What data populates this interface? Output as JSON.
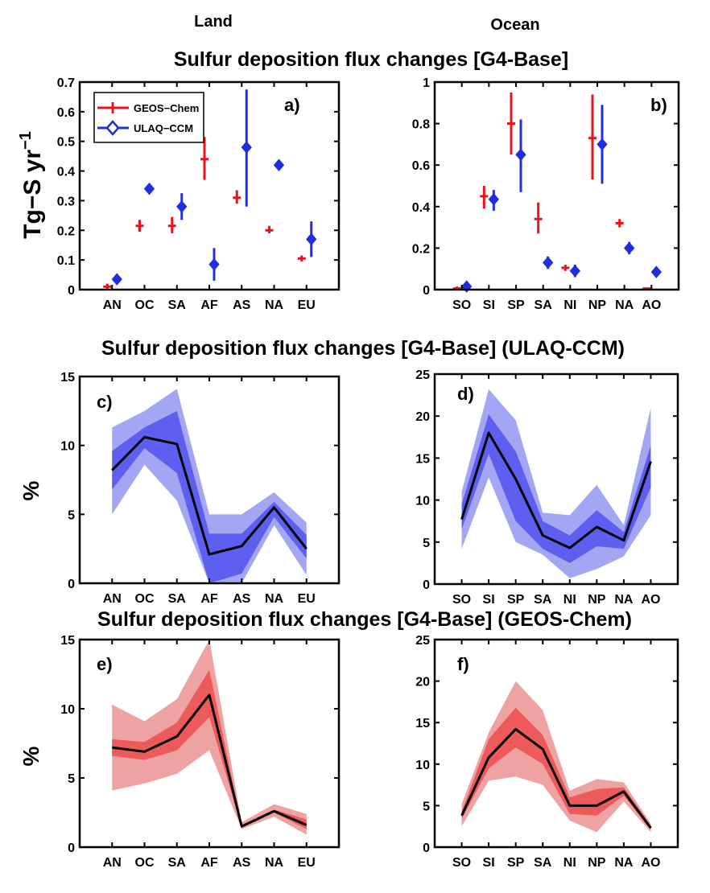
{
  "column_titles": {
    "land": "Land",
    "ocean": "Ocean"
  },
  "row_titles": [
    "Sulfur deposition flux changes [G4-Base]",
    "Sulfur deposition flux changes [G4-Base] (ULAQ-CCM)",
    "Sulfur deposition flux changes [G4-Base] (GEOS-Chem)"
  ],
  "colors": {
    "geos": "#e8141c",
    "ulaq": "#1f2fe0",
    "ulaq_band_inner": "#5c5ff0",
    "ulaq_band_outer": "#a3a6f2",
    "geos_band_inner": "#ec5a5a",
    "geos_band_outer": "#eea2a2",
    "line": "#000000"
  },
  "legend": {
    "geos": "GEOS−Chem",
    "ulaq": "ULAQ−CCM"
  },
  "ylabel_flux": "Tg−S yr",
  "ylabel_flux_sup": "−1",
  "ylabel_pct": "%",
  "chart_data": [
    {
      "id": "a",
      "panel_label": "a)",
      "type": "errorbar",
      "categories": [
        "AN",
        "OC",
        "SA",
        "AF",
        "AS",
        "NA",
        "EU"
      ],
      "ylim": [
        0,
        0.7
      ],
      "yticks": [
        "0",
        "0.1",
        "0.2",
        "0.3",
        "0.4",
        "0.5",
        "0.6",
        "0.7"
      ],
      "series": [
        {
          "name": "GEOS−Chem",
          "values": [
            0.01,
            0.215,
            0.215,
            0.44,
            0.31,
            0.2,
            0.105
          ],
          "low": [
            0.0,
            0.195,
            0.19,
            0.37,
            0.29,
            0.19,
            0.095
          ],
          "high": [
            0.02,
            0.235,
            0.245,
            0.515,
            0.335,
            0.215,
            0.115
          ]
        },
        {
          "name": "ULAQ−CCM",
          "values": [
            0.035,
            0.34,
            0.28,
            0.085,
            0.48,
            0.42,
            0.17
          ],
          "low": [
            0.025,
            0.325,
            0.235,
            0.03,
            0.28,
            0.41,
            0.11
          ],
          "high": [
            0.045,
            0.355,
            0.325,
            0.14,
            0.675,
            0.43,
            0.23
          ]
        }
      ]
    },
    {
      "id": "b",
      "panel_label": "b)",
      "type": "errorbar",
      "categories": [
        "SO",
        "SI",
        "SP",
        "SA",
        "NI",
        "NP",
        "NA",
        "AO"
      ],
      "ylim": [
        0,
        1
      ],
      "yticks": [
        "0",
        "0.2",
        "0.4",
        "0.6",
        "0.8",
        "1"
      ],
      "series": [
        {
          "name": "GEOS−Chem",
          "values": [
            0.005,
            0.45,
            0.8,
            0.34,
            0.105,
            0.73,
            0.32,
            0.005
          ],
          "low": [
            0.0,
            0.39,
            0.65,
            0.27,
            0.09,
            0.53,
            0.3,
            0.0
          ],
          "high": [
            0.015,
            0.5,
            0.95,
            0.42,
            0.12,
            0.94,
            0.34,
            0.01
          ]
        },
        {
          "name": "ULAQ−CCM",
          "values": [
            0.015,
            0.435,
            0.65,
            0.13,
            0.09,
            0.7,
            0.2,
            0.085
          ],
          "low": [
            0.005,
            0.38,
            0.47,
            0.1,
            0.06,
            0.51,
            0.17,
            0.075
          ],
          "high": [
            0.025,
            0.48,
            0.82,
            0.16,
            0.12,
            0.89,
            0.23,
            0.095
          ]
        }
      ]
    },
    {
      "id": "c",
      "panel_label": "c)",
      "type": "area",
      "categories": [
        "AN",
        "OC",
        "SA",
        "AF",
        "AS",
        "NA",
        "EU"
      ],
      "ylim": [
        0,
        15
      ],
      "yticks": [
        "0",
        "5",
        "10",
        "15"
      ],
      "scheme": "ulaq",
      "values": [
        8.2,
        10.6,
        10.1,
        2.1,
        2.7,
        5.5,
        2.5
      ],
      "inner_low": [
        6.8,
        9.8,
        8.0,
        0.0,
        0.7,
        4.8,
        1.8
      ],
      "inner_high": [
        9.6,
        11.3,
        12.5,
        3.6,
        3.6,
        5.9,
        3.5
      ],
      "outer_low": [
        5.0,
        8.6,
        6.0,
        0.0,
        0.0,
        4.2,
        0.6
      ],
      "outer_high": [
        11.3,
        12.5,
        14.1,
        5.0,
        5.0,
        6.6,
        4.4
      ]
    },
    {
      "id": "d",
      "panel_label": "d)",
      "type": "area",
      "categories": [
        "SO",
        "SI",
        "SP",
        "SA",
        "NI",
        "NP",
        "NA",
        "AO"
      ],
      "ylim": [
        0,
        25
      ],
      "yticks": [
        "0",
        "5",
        "10",
        "15",
        "20",
        "25"
      ],
      "scheme": "ulaq",
      "values": [
        7.7,
        18.0,
        12.5,
        5.8,
        4.3,
        6.8,
        5.2,
        14.6
      ],
      "inner_low": [
        6.5,
        15.5,
        7.5,
        4.2,
        2.5,
        4.5,
        4.2,
        11.5
      ],
      "inner_high": [
        9.5,
        20.2,
        15.8,
        7.5,
        5.8,
        8.8,
        6.2,
        16.5
      ],
      "outer_low": [
        4.2,
        12.7,
        5.0,
        3.5,
        0.7,
        1.8,
        3.3,
        8.2
      ],
      "outer_high": [
        11.0,
        23.2,
        19.5,
        8.5,
        8.2,
        11.8,
        7.0,
        21.0
      ]
    },
    {
      "id": "e",
      "panel_label": "e)",
      "type": "area",
      "categories": [
        "AN",
        "OC",
        "SA",
        "AF",
        "AS",
        "NA",
        "EU"
      ],
      "ylim": [
        0,
        15
      ],
      "yticks": [
        "0",
        "5",
        "10",
        "15"
      ],
      "scheme": "geos",
      "values": [
        7.2,
        6.9,
        8.0,
        11.0,
        1.5,
        2.6,
        1.6
      ],
      "inner_low": [
        6.6,
        6.3,
        7.0,
        9.4,
        1.4,
        2.5,
        1.3
      ],
      "inner_high": [
        7.8,
        7.6,
        9.0,
        12.8,
        1.6,
        2.7,
        2.0
      ],
      "outer_low": [
        4.1,
        4.6,
        5.3,
        7.0,
        1.3,
        2.2,
        0.9
      ],
      "outer_high": [
        10.3,
        9.1,
        10.7,
        15.0,
        1.8,
        3.1,
        2.4
      ]
    },
    {
      "id": "f",
      "panel_label": "f)",
      "type": "area",
      "categories": [
        "SO",
        "SI",
        "SP",
        "SA",
        "NI",
        "NP",
        "NA",
        "AO"
      ],
      "ylim": [
        0,
        25
      ],
      "yticks": [
        "0",
        "5",
        "10",
        "15",
        "20",
        "25"
      ],
      "scheme": "geos",
      "values": [
        3.8,
        10.8,
        14.2,
        11.8,
        5.0,
        5.0,
        6.7,
        2.3
      ],
      "inner_low": [
        3.4,
        9.5,
        12.0,
        10.0,
        4.0,
        3.8,
        6.2,
        2.1
      ],
      "inner_high": [
        4.3,
        13.0,
        16.8,
        13.5,
        6.0,
        7.0,
        7.2,
        2.6
      ],
      "outer_low": [
        2.5,
        8.0,
        8.5,
        7.5,
        3.2,
        1.8,
        5.5,
        1.8
      ],
      "outer_high": [
        5.2,
        13.8,
        20.0,
        16.5,
        6.8,
        8.2,
        7.8,
        2.8
      ]
    }
  ]
}
